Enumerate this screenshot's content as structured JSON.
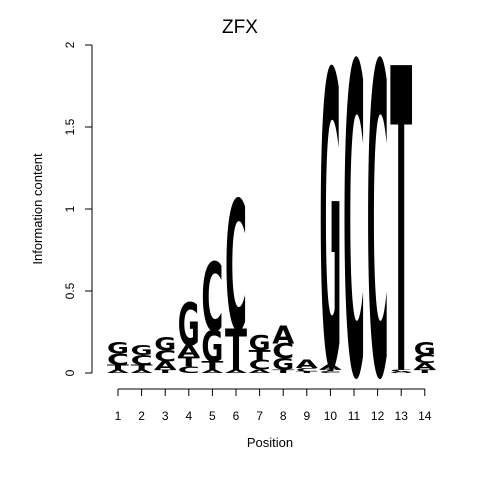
{
  "chart_data": {
    "type": "sequence-logo",
    "title": "ZFX",
    "xlabel": "Position",
    "ylabel": "Information content",
    "ylim": [
      0,
      2
    ],
    "yticks": [
      "0",
      "0.5",
      "1",
      "1.5",
      "2"
    ],
    "positions": [
      "1",
      "2",
      "3",
      "4",
      "5",
      "6",
      "7",
      "8",
      "9",
      "10",
      "11",
      "12",
      "13",
      "14"
    ],
    "letter_colors": {
      "A": "#00cc00",
      "C": "#0000ff",
      "G": "#ffa500",
      "T": "#ff0000"
    },
    "stacks": [
      [
        {
          "letter": "A",
          "height": 0.02
        },
        {
          "letter": "T",
          "height": 0.03
        },
        {
          "letter": "C",
          "height": 0.07
        },
        {
          "letter": "G",
          "height": 0.07
        }
      ],
      [
        {
          "letter": "A",
          "height": 0.02
        },
        {
          "letter": "T",
          "height": 0.03
        },
        {
          "letter": "C",
          "height": 0.06
        },
        {
          "letter": "G",
          "height": 0.06
        }
      ],
      [
        {
          "letter": "T",
          "height": 0.02
        },
        {
          "letter": "A",
          "height": 0.05
        },
        {
          "letter": "C",
          "height": 0.07
        },
        {
          "letter": "G",
          "height": 0.08
        }
      ],
      [
        {
          "letter": "C",
          "height": 0.04
        },
        {
          "letter": "T",
          "height": 0.06
        },
        {
          "letter": "A",
          "height": 0.07
        },
        {
          "letter": "G",
          "height": 0.26
        }
      ],
      [
        {
          "letter": "A",
          "height": 0.02
        },
        {
          "letter": "T",
          "height": 0.05
        },
        {
          "letter": "G",
          "height": 0.19
        },
        {
          "letter": "C",
          "height": 0.42
        }
      ],
      [
        {
          "letter": "A",
          "height": 0.02
        },
        {
          "letter": "T",
          "height": 0.25
        },
        {
          "letter": "C",
          "height": 0.79
        }
      ],
      [
        {
          "letter": "A",
          "height": 0.02
        },
        {
          "letter": "C",
          "height": 0.06
        },
        {
          "letter": "T",
          "height": 0.06
        },
        {
          "letter": "G",
          "height": 0.09
        }
      ],
      [
        {
          "letter": "T",
          "height": 0.02
        },
        {
          "letter": "G",
          "height": 0.07
        },
        {
          "letter": "C",
          "height": 0.09
        },
        {
          "letter": "A",
          "height": 0.11
        }
      ],
      [
        {
          "letter": "T",
          "height": 0.01
        },
        {
          "letter": "C",
          "height": 0.02
        },
        {
          "letter": "A",
          "height": 0.05
        },
        {
          "letter": "T",
          "height": 0.0
        },
        {
          "letter": "G",
          "height": 0.0
        }
      ],
      [
        {
          "letter": "C",
          "height": 0.01
        },
        {
          "letter": "T",
          "height": 0.01
        },
        {
          "letter": "A",
          "height": 0.03
        },
        {
          "letter": "G",
          "height": 1.8
        }
      ],
      [
        {
          "letter": "A",
          "height": 0.0
        },
        {
          "letter": "C",
          "height": 1.9
        }
      ],
      [
        {
          "letter": "G",
          "height": 0.0
        },
        {
          "letter": "C",
          "height": 1.9
        }
      ],
      [
        {
          "letter": "A",
          "height": 0.01
        },
        {
          "letter": "C",
          "height": 0.01
        },
        {
          "letter": "T",
          "height": 1.86
        }
      ],
      [
        {
          "letter": "T",
          "height": 0.02
        },
        {
          "letter": "A",
          "height": 0.04
        },
        {
          "letter": "C",
          "height": 0.05
        },
        {
          "letter": "G",
          "height": 0.08
        }
      ]
    ]
  }
}
